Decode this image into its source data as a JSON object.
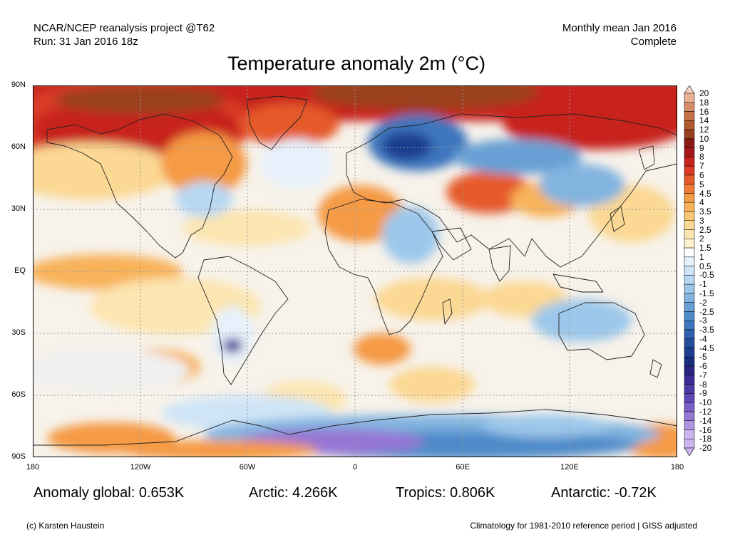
{
  "header": {
    "source_line": "NCAR/NCEP reanalysis project @T62",
    "run_line": "Run: 31 Jan 2016 18z",
    "period_line": "Monthly mean Jan 2016",
    "status_line": "Complete"
  },
  "title": "Temperature anomaly 2m (°C)",
  "map": {
    "lat_labels": [
      "90N",
      "60N",
      "30N",
      "EQ",
      "30S",
      "60S",
      "90S"
    ],
    "lon_labels": [
      "180",
      "120W",
      "60W",
      "0",
      "60E",
      "120E",
      "180"
    ]
  },
  "colorbar": {
    "labels": [
      "20",
      "18",
      "16",
      "14",
      "12",
      "10",
      "9",
      "8",
      "7",
      "6",
      "5",
      "4.5",
      "4",
      "3.5",
      "3",
      "2.5",
      "2",
      "1.5",
      "1",
      "0.5",
      "-0.5",
      "-1",
      "-1.5",
      "-2",
      "-2.5",
      "-3",
      "-3.5",
      "-4",
      "-4.5",
      "-5",
      "-6",
      "-7",
      "-8",
      "-9",
      "-10",
      "-12",
      "-14",
      "-16",
      "-18",
      "-20"
    ],
    "colors": [
      "#f6d3c4",
      "#eab197",
      "#d98e6a",
      "#c47148",
      "#b05a2e",
      "#9a3f1e",
      "#8a1a12",
      "#a3161a",
      "#c8231f",
      "#db3a26",
      "#e65a2c",
      "#f07a36",
      "#f59a45",
      "#f8b25a",
      "#fac775",
      "#fbd893",
      "#fce5b0",
      "#fdf0cc",
      "#ffffff",
      "#e6f1fb",
      "#cfe5f7",
      "#b7d8f2",
      "#9cc7ea",
      "#82b4e0",
      "#68a0d5",
      "#508bc9",
      "#3d76bd",
      "#2f61ae",
      "#254d9e",
      "#1f3d8e",
      "#1a2e7f",
      "#2a2580",
      "#3b2d95",
      "#4c3aa8",
      "#6048b8",
      "#7a5dc6",
      "#9676d4",
      "#b295e1",
      "#ccb4ee",
      "#ccb4ee"
    ]
  },
  "stats": {
    "global": "Anomaly global: 0.653K",
    "arctic": "Arctic: 4.266K",
    "tropics": "Tropics: 0.806K",
    "antarctic": "Antarctic: -0.72K"
  },
  "footer": {
    "credit": "(c) Karsten Haustein",
    "note": "Climatology for 1981-2010 reference period | GISS adjusted"
  }
}
